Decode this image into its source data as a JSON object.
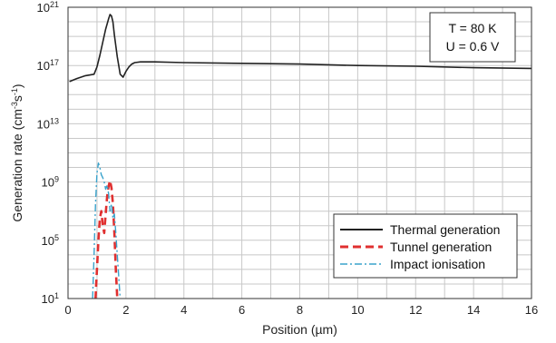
{
  "chart_data": {
    "type": "line",
    "title": "",
    "xlabel": "Position (µm)",
    "ylabel": "Generation rate (cm",
    "ylabel_sup1": "-3",
    "ylabel_mid": "s",
    "ylabel_sup2": "-1",
    "ylabel_end": ")",
    "xlim": [
      0,
      16
    ],
    "ylim_log10": [
      1,
      21
    ],
    "y_scale": "log",
    "grid": true,
    "legend_placement": "bottom-right",
    "x_ticks": [
      "0",
      "2",
      "4",
      "6",
      "8",
      "10",
      "12",
      "14",
      "16"
    ],
    "y_ticks": [
      {
        "base": "10",
        "exp": "1"
      },
      {
        "base": "10",
        "exp": "5"
      },
      {
        "base": "10",
        "exp": "9"
      },
      {
        "base": "10",
        "exp": "13"
      },
      {
        "base": "10",
        "exp": "17"
      },
      {
        "base": "10",
        "exp": "21"
      }
    ],
    "annotation": [
      "T = 80 K",
      "U = 0.6 V"
    ],
    "series": [
      {
        "name": "Thermal generation",
        "color": "#222222",
        "dash": "solid",
        "x_um": [
          0.05,
          0.3,
          0.6,
          0.9,
          1.0,
          1.1,
          1.2,
          1.3,
          1.4,
          1.45,
          1.5,
          1.55,
          1.6,
          1.7,
          1.8,
          1.9,
          2.0,
          2.1,
          2.2,
          2.3,
          2.5,
          3,
          4,
          6,
          8,
          10,
          12,
          14,
          16
        ],
        "log10_y": [
          15.9,
          16.1,
          16.3,
          16.4,
          16.9,
          17.7,
          18.6,
          19.5,
          20.2,
          20.5,
          20.4,
          20.0,
          19.1,
          17.6,
          16.4,
          16.2,
          16.6,
          16.9,
          17.1,
          17.2,
          17.25,
          17.25,
          17.2,
          17.15,
          17.1,
          17.0,
          16.95,
          16.85,
          16.8
        ]
      },
      {
        "name": "Tunnel generation",
        "color": "#e03030",
        "dash": "dashed",
        "x_um": [
          0.95,
          1.0,
          1.05,
          1.1,
          1.15,
          1.2,
          1.25,
          1.3,
          1.35,
          1.4,
          1.45,
          1.5,
          1.55,
          1.6,
          1.65,
          1.7
        ],
        "log10_y": [
          1,
          3,
          5,
          6.5,
          7.0,
          6.0,
          5.5,
          6.8,
          8.0,
          8.7,
          9.1,
          8.6,
          7.5,
          5.5,
          3.0,
          1
        ]
      },
      {
        "name": "Impact ionisation",
        "color": "#3aa3cc",
        "dash": "dashdot",
        "x_um": [
          0.85,
          0.9,
          0.95,
          1.0,
          1.05,
          1.1,
          1.15,
          1.2,
          1.25,
          1.3,
          1.35,
          1.4,
          1.45,
          1.5,
          1.55,
          1.6,
          1.65,
          1.7,
          1.75,
          1.8
        ],
        "log10_y": [
          1,
          4,
          7.5,
          9.6,
          10.3,
          10.0,
          9.5,
          9.3,
          9.0,
          8.5,
          8.8,
          8.2,
          7.0,
          7.5,
          6.5,
          6.8,
          5.5,
          4.0,
          2.5,
          1
        ]
      }
    ]
  }
}
